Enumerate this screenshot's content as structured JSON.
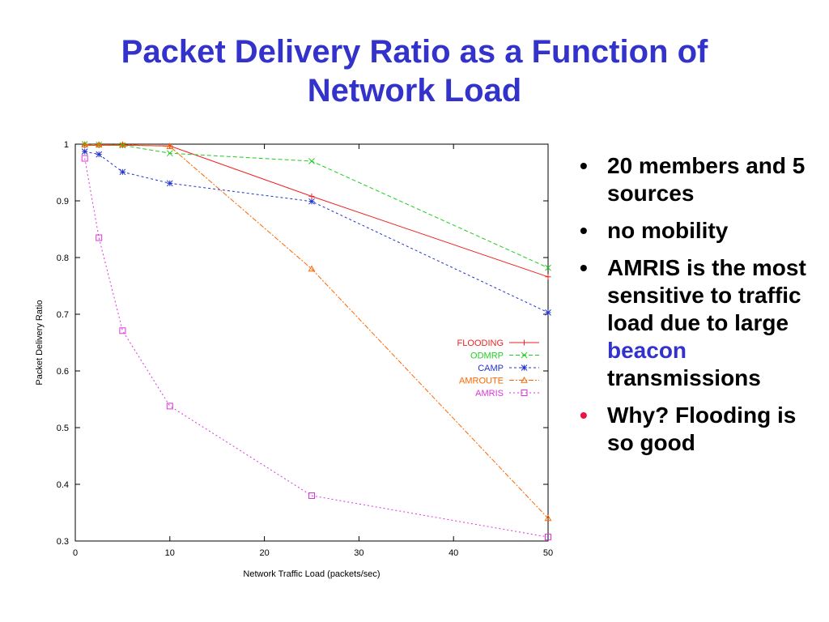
{
  "slide": {
    "title_line1": "Packet Delivery Ratio as a Function of",
    "title_line2": "Network Load",
    "bullets": [
      {
        "text": "20 members and 5 sources"
      },
      {
        "text": "no mobility"
      },
      {
        "text_before": "AMRIS is the most sensitive to traffic load due to large",
        "highlight": "beacon",
        "text_after": "transmissions"
      },
      {
        "text": "Why? Flooding is so good"
      }
    ],
    "colors": {
      "title": "#3333cc",
      "highlight": "#3333cc",
      "emphasis": "#ee1144"
    }
  },
  "chart_data": {
    "type": "line",
    "xlabel": "Network Traffic Load (packets/sec)",
    "ylabel": "Packet Delivery Ratio",
    "xlim": [
      0,
      50
    ],
    "ylim": [
      0.3,
      1
    ],
    "xticks": [
      0,
      10,
      20,
      30,
      40,
      50
    ],
    "yticks": [
      0.3,
      0.4,
      0.5,
      0.6,
      0.7,
      0.8,
      0.9,
      1
    ],
    "grid": false,
    "legend_position": "right",
    "series": [
      {
        "name": "FLOODING",
        "color": "#ee2222",
        "marker": "plus",
        "dash": "",
        "x": [
          1,
          2.5,
          5,
          10,
          25,
          50
        ],
        "y": [
          0.998,
          0.998,
          0.998,
          0.997,
          0.908,
          0.766
        ]
      },
      {
        "name": "ODMRP",
        "color": "#22cc22",
        "marker": "x",
        "dash": "5,3",
        "x": [
          1,
          2.5,
          5,
          10,
          25,
          50
        ],
        "y": [
          1.0,
          0.999,
          0.998,
          0.984,
          0.97,
          0.782
        ]
      },
      {
        "name": "CAMP",
        "color": "#2233cc",
        "marker": "star",
        "dash": "3,3",
        "x": [
          1,
          2.5,
          5,
          10,
          25,
          50
        ],
        "y": [
          0.987,
          0.982,
          0.951,
          0.931,
          0.899,
          0.703
        ]
      },
      {
        "name": "AMROUTE",
        "color": "#ff6600",
        "marker": "triangle",
        "dash": "6,2,2,2",
        "x": [
          1,
          2.5,
          5,
          10,
          25,
          50
        ],
        "y": [
          0.999,
          0.999,
          0.999,
          0.996,
          0.78,
          0.34
        ]
      },
      {
        "name": "AMRIS",
        "color": "#dd33dd",
        "marker": "square",
        "dash": "2,3",
        "x": [
          1,
          2.5,
          5,
          10,
          25,
          50
        ],
        "y": [
          0.975,
          0.835,
          0.671,
          0.538,
          0.38,
          0.307
        ]
      }
    ]
  }
}
